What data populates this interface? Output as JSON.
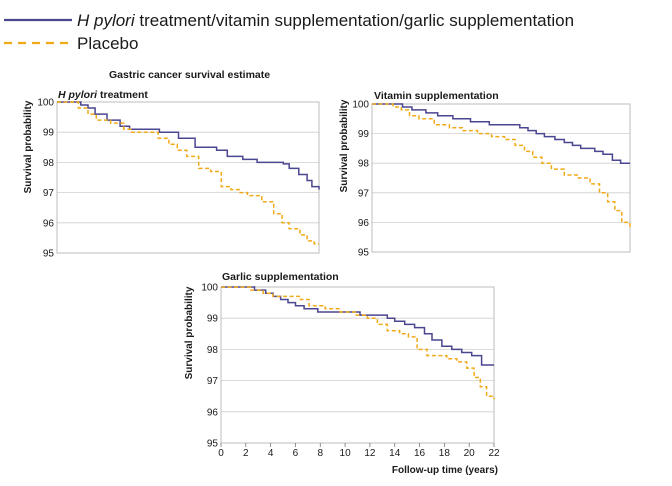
{
  "legend": [
    {
      "prefix": "H pylori",
      "suffix": " treatment/vitamin supplementation/garlic supplementation",
      "color": "#4a4690",
      "dash": "solid"
    },
    {
      "prefix": "",
      "suffix": "Placebo",
      "color": "#f0aa18",
      "dash": "dashed"
    }
  ],
  "colors": {
    "treatment": "#4a4690",
    "placebo": "#f0aa18"
  },
  "chart_data": [
    {
      "type": "line",
      "supertitle": "Gastric cancer survival estimate",
      "title_prefix": "H pylori",
      "title_suffix": " treatment",
      "ylabel": "Survival probability",
      "xlabel": "",
      "xlim": [
        0,
        22
      ],
      "ylim": [
        95,
        100
      ],
      "yticks": [
        "95",
        "96",
        "97",
        "98",
        "99",
        "100"
      ],
      "xticks": [],
      "grid": true,
      "series": [
        {
          "key": "treatment",
          "x": [
            0,
            1.5,
            2,
            2.6,
            3.2,
            4.2,
            5.3,
            6.1,
            7,
            7.5,
            8.6,
            10.2,
            11.6,
            12.4,
            13.4,
            14.3,
            15.6,
            16.8,
            17.9,
            19,
            19.5,
            20.3,
            21,
            21.4,
            22
          ],
          "y": [
            100,
            100,
            99.9,
            99.8,
            99.6,
            99.4,
            99.2,
            99.1,
            99.1,
            99.1,
            99.0,
            98.8,
            98.5,
            98.5,
            98.4,
            98.2,
            98.1,
            98.0,
            98.0,
            97.95,
            97.8,
            97.6,
            97.4,
            97.2,
            97.1
          ]
        },
        {
          "key": "placebo",
          "x": [
            0,
            1.8,
            2.6,
            3.3,
            4.5,
            5.6,
            6.2,
            7,
            8.5,
            9.4,
            10.1,
            10.9,
            11.9,
            12.9,
            13.8,
            14.6,
            15.3,
            16,
            17.2,
            18.2,
            18.9,
            19.5,
            20.4,
            21,
            21.6,
            22
          ],
          "y": [
            100,
            99.8,
            99.6,
            99.4,
            99.3,
            99.1,
            99.0,
            99.0,
            98.8,
            98.6,
            98.4,
            98.2,
            97.8,
            97.7,
            97.2,
            97.1,
            97.0,
            96.9,
            96.7,
            96.3,
            96.0,
            95.8,
            95.6,
            95.4,
            95.3,
            95.3
          ]
        }
      ]
    },
    {
      "type": "line",
      "title_prefix": "",
      "title_suffix": "Vitamin supplementation",
      "ylabel": "Survival probability",
      "xlabel": "",
      "xlim": [
        0,
        22
      ],
      "ylim": [
        95,
        100
      ],
      "yticks": [
        "95",
        "96",
        "97",
        "98",
        "99",
        "100"
      ],
      "xticks": [],
      "grid": true,
      "series": [
        {
          "key": "treatment",
          "x": [
            0,
            2,
            2.6,
            3.4,
            4.6,
            5.6,
            6.9,
            8.4,
            10,
            11.7,
            12.6,
            13.3,
            14,
            14.7,
            15.6,
            16.4,
            17.1,
            17.8,
            19,
            19.7,
            20.5,
            21.2,
            22
          ],
          "y": [
            100,
            100,
            99.9,
            99.8,
            99.7,
            99.6,
            99.5,
            99.4,
            99.3,
            99.3,
            99.2,
            99.1,
            99.0,
            98.9,
            98.8,
            98.7,
            98.6,
            98.5,
            98.4,
            98.3,
            98.1,
            98.0,
            98.0
          ]
        },
        {
          "key": "placebo",
          "x": [
            0,
            1.8,
            2.5,
            3.2,
            4,
            5.3,
            6.6,
            7.7,
            9,
            10.2,
            11.3,
            12.2,
            13,
            13.7,
            14.5,
            15.3,
            16.4,
            17.6,
            18.6,
            19.4,
            20.1,
            20.7,
            21.3,
            22
          ],
          "y": [
            100,
            99.9,
            99.8,
            99.6,
            99.5,
            99.3,
            99.2,
            99.1,
            99.0,
            98.9,
            98.8,
            98.6,
            98.4,
            98.2,
            98.0,
            97.8,
            97.6,
            97.5,
            97.3,
            97.0,
            96.7,
            96.4,
            96.0,
            95.8
          ]
        }
      ]
    },
    {
      "type": "line",
      "title_prefix": "",
      "title_suffix": "Garlic supplementation",
      "ylabel": "Survival probability",
      "xlabel": "Follow-up time (years)",
      "xlim": [
        0,
        22
      ],
      "ylim": [
        95,
        100
      ],
      "yticks": [
        "95",
        "96",
        "97",
        "98",
        "99",
        "100"
      ],
      "xticks": [
        "0",
        "2",
        "4",
        "6",
        "8",
        "10",
        "12",
        "14",
        "16",
        "18",
        "20",
        "22"
      ],
      "grid": true,
      "series": [
        {
          "key": "treatment",
          "x": [
            0,
            2,
            2.7,
            3.6,
            4.2,
            4.8,
            5.4,
            6,
            6.7,
            7.8,
            9,
            10.1,
            11.2,
            12.6,
            13.4,
            14,
            14.8,
            15.6,
            16.4,
            17,
            17.8,
            18.6,
            19.4,
            20.2,
            21,
            22
          ],
          "y": [
            100,
            100,
            99.9,
            99.8,
            99.7,
            99.6,
            99.5,
            99.4,
            99.3,
            99.2,
            99.2,
            99.2,
            99.1,
            99.1,
            99.0,
            98.9,
            98.8,
            98.7,
            98.5,
            98.3,
            98.1,
            98.0,
            97.9,
            97.8,
            97.5,
            97.5
          ]
        },
        {
          "key": "placebo",
          "x": [
            0,
            2.4,
            3.4,
            4.2,
            5.7,
            6.4,
            7.1,
            8.4,
            9.6,
            10.9,
            11.8,
            12.6,
            13.4,
            14.4,
            15.1,
            15.8,
            16.6,
            18.2,
            19,
            19.8,
            20.4,
            20.9,
            21.4,
            22
          ],
          "y": [
            100,
            99.9,
            99.8,
            99.7,
            99.7,
            99.6,
            99.4,
            99.3,
            99.2,
            99.1,
            99.0,
            98.8,
            98.6,
            98.5,
            98.4,
            98.0,
            97.8,
            97.7,
            97.6,
            97.4,
            97.1,
            96.8,
            96.5,
            96.4
          ]
        }
      ]
    }
  ]
}
